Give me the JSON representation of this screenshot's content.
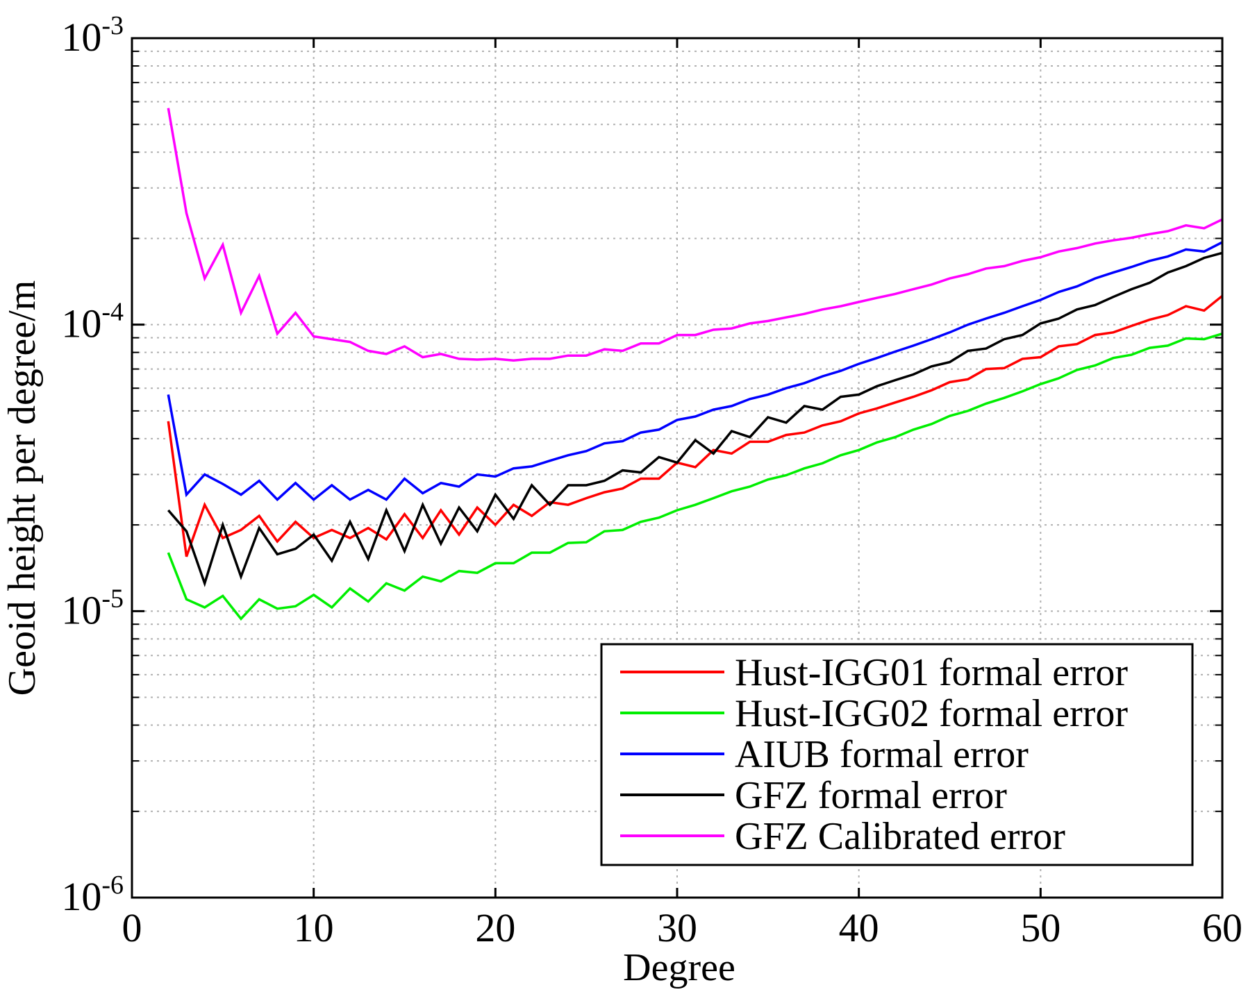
{
  "chart_data": {
    "type": "line",
    "xlabel": "Degree",
    "ylabel": "Geoid height per degree/m",
    "xlim": [
      0,
      60
    ],
    "ylim": [
      1e-06,
      0.001
    ],
    "yscale": "log",
    "grid": true,
    "legend_position": "bottom-right",
    "x_ticks": [
      "0",
      "10",
      "20",
      "30",
      "40",
      "50",
      "60"
    ],
    "y_ticks": [
      {
        "base": "10",
        "exp": "-6"
      },
      {
        "base": "10",
        "exp": "-5"
      },
      {
        "base": "10",
        "exp": "-4"
      },
      {
        "base": "10",
        "exp": "-3"
      }
    ],
    "x": [
      2,
      3,
      4,
      5,
      6,
      7,
      8,
      9,
      10,
      11,
      12,
      13,
      14,
      15,
      16,
      17,
      18,
      19,
      20,
      21,
      22,
      23,
      24,
      25,
      26,
      27,
      28,
      29,
      30,
      31,
      32,
      33,
      34,
      35,
      36,
      37,
      38,
      39,
      40,
      41,
      42,
      43,
      44,
      45,
      46,
      47,
      48,
      49,
      50,
      51,
      52,
      53,
      54,
      55,
      56,
      57,
      58,
      59,
      60
    ],
    "series": [
      {
        "name": "Hust-IGG01 formal error",
        "color": "#ff0000",
        "values": [
          4.6e-05,
          1.55e-05,
          2.35e-05,
          1.8e-05,
          1.92e-05,
          2.15e-05,
          1.75e-05,
          2.05e-05,
          1.8e-05,
          1.92e-05,
          1.8e-05,
          1.95e-05,
          1.78e-05,
          2.18e-05,
          1.8e-05,
          2.25e-05,
          1.85e-05,
          2.3e-05,
          2e-05,
          2.35e-05,
          2.15e-05,
          2.4e-05,
          2.35e-05,
          2.48e-05,
          2.6e-05,
          2.68e-05,
          2.9e-05,
          2.9e-05,
          3.3e-05,
          3.18e-05,
          3.65e-05,
          3.55e-05,
          3.9e-05,
          3.9e-05,
          4.12e-05,
          4.2e-05,
          4.45e-05,
          4.6e-05,
          4.9e-05,
          5.1e-05,
          5.35e-05,
          5.6e-05,
          5.9e-05,
          6.3e-05,
          6.45e-05,
          7e-05,
          7.05e-05,
          7.6e-05,
          7.7e-05,
          8.4e-05,
          8.55e-05,
          9.2e-05,
          9.4e-05,
          9.9e-05,
          0.000104,
          0.000108,
          0.000116,
          0.000112,
          0.000126
        ]
      },
      {
        "name": "Hust-IGG02 formal error",
        "color": "#00ee00",
        "values": [
          1.6e-05,
          1.1e-05,
          1.03e-05,
          1.13e-05,
          9.4e-06,
          1.1e-05,
          1.02e-05,
          1.04e-05,
          1.14e-05,
          1.03e-05,
          1.2e-05,
          1.08e-05,
          1.25e-05,
          1.18e-05,
          1.32e-05,
          1.27e-05,
          1.38e-05,
          1.36e-05,
          1.47e-05,
          1.47e-05,
          1.6e-05,
          1.6e-05,
          1.73e-05,
          1.74e-05,
          1.9e-05,
          1.92e-05,
          2.05e-05,
          2.12e-05,
          2.25e-05,
          2.35e-05,
          2.48e-05,
          2.62e-05,
          2.72e-05,
          2.88e-05,
          2.98e-05,
          3.15e-05,
          3.28e-05,
          3.5e-05,
          3.65e-05,
          3.88e-05,
          4.05e-05,
          4.3e-05,
          4.5e-05,
          4.8e-05,
          5e-05,
          5.3e-05,
          5.55e-05,
          5.85e-05,
          6.2e-05,
          6.5e-05,
          6.95e-05,
          7.2e-05,
          7.65e-05,
          7.85e-05,
          8.3e-05,
          8.45e-05,
          8.95e-05,
          8.9e-05,
          9.3e-05
        ]
      },
      {
        "name": "AIUB formal error",
        "color": "#0000ff",
        "values": [
          5.7e-05,
          2.55e-05,
          3e-05,
          2.78e-05,
          2.55e-05,
          2.85e-05,
          2.45e-05,
          2.8e-05,
          2.45e-05,
          2.75e-05,
          2.45e-05,
          2.65e-05,
          2.45e-05,
          2.9e-05,
          2.58e-05,
          2.8e-05,
          2.72e-05,
          3e-05,
          2.95e-05,
          3.15e-05,
          3.2e-05,
          3.35e-05,
          3.5e-05,
          3.62e-05,
          3.85e-05,
          3.92e-05,
          4.2e-05,
          4.3e-05,
          4.65e-05,
          4.78e-05,
          5.05e-05,
          5.2e-05,
          5.5e-05,
          5.7e-05,
          6e-05,
          6.25e-05,
          6.6e-05,
          6.9e-05,
          7.3e-05,
          7.65e-05,
          8.05e-05,
          8.45e-05,
          8.9e-05,
          9.4e-05,
          0.0001,
          0.000105,
          0.00011,
          0.000116,
          0.000122,
          0.00013,
          0.000136,
          0.000145,
          0.000152,
          0.000159,
          0.000167,
          0.000173,
          0.000183,
          0.00018,
          0.000194
        ]
      },
      {
        "name": "GFZ formal error",
        "color": "#000000",
        "values": [
          2.25e-05,
          1.9e-05,
          1.25e-05,
          2e-05,
          1.32e-05,
          1.95e-05,
          1.58e-05,
          1.65e-05,
          1.85e-05,
          1.5e-05,
          2.05e-05,
          1.52e-05,
          2.25e-05,
          1.62e-05,
          2.35e-05,
          1.72e-05,
          2.3e-05,
          1.9e-05,
          2.55e-05,
          2.1e-05,
          2.75e-05,
          2.35e-05,
          2.75e-05,
          2.75e-05,
          2.85e-05,
          3.1e-05,
          3.05e-05,
          3.45e-05,
          3.3e-05,
          3.95e-05,
          3.55e-05,
          4.25e-05,
          4.05e-05,
          4.75e-05,
          4.55e-05,
          5.2e-05,
          5.05e-05,
          5.6e-05,
          5.7e-05,
          6.1e-05,
          6.4e-05,
          6.7e-05,
          7.15e-05,
          7.4e-05,
          8.1e-05,
          8.25e-05,
          8.9e-05,
          9.2e-05,
          0.000101,
          0.000105,
          0.000113,
          0.000117,
          0.000125,
          0.000133,
          0.00014,
          0.000152,
          0.00016,
          0.000171,
          0.000178
        ]
      },
      {
        "name": "GFZ Calibrated error",
        "color": "#ff00ff",
        "values": [
          0.00057,
          0.000245,
          0.000145,
          0.00019,
          0.00011,
          0.000148,
          9.3e-05,
          0.00011,
          9.1e-05,
          8.9e-05,
          8.7e-05,
          8.1e-05,
          7.9e-05,
          8.4e-05,
          7.7e-05,
          7.9e-05,
          7.6e-05,
          7.55e-05,
          7.6e-05,
          7.5e-05,
          7.6e-05,
          7.6e-05,
          7.8e-05,
          7.8e-05,
          8.2e-05,
          8.1e-05,
          8.6e-05,
          8.6e-05,
          9.2e-05,
          9.2e-05,
          9.6e-05,
          9.7e-05,
          0.000101,
          0.000103,
          0.000106,
          0.000109,
          0.000113,
          0.000116,
          0.00012,
          0.000124,
          0.000128,
          0.000133,
          0.000138,
          0.000145,
          0.00015,
          0.000157,
          0.00016,
          0.000167,
          0.000172,
          0.00018,
          0.000185,
          0.000192,
          0.000197,
          0.000201,
          0.000207,
          0.000212,
          0.000222,
          0.000217,
          0.000233
        ]
      }
    ]
  }
}
